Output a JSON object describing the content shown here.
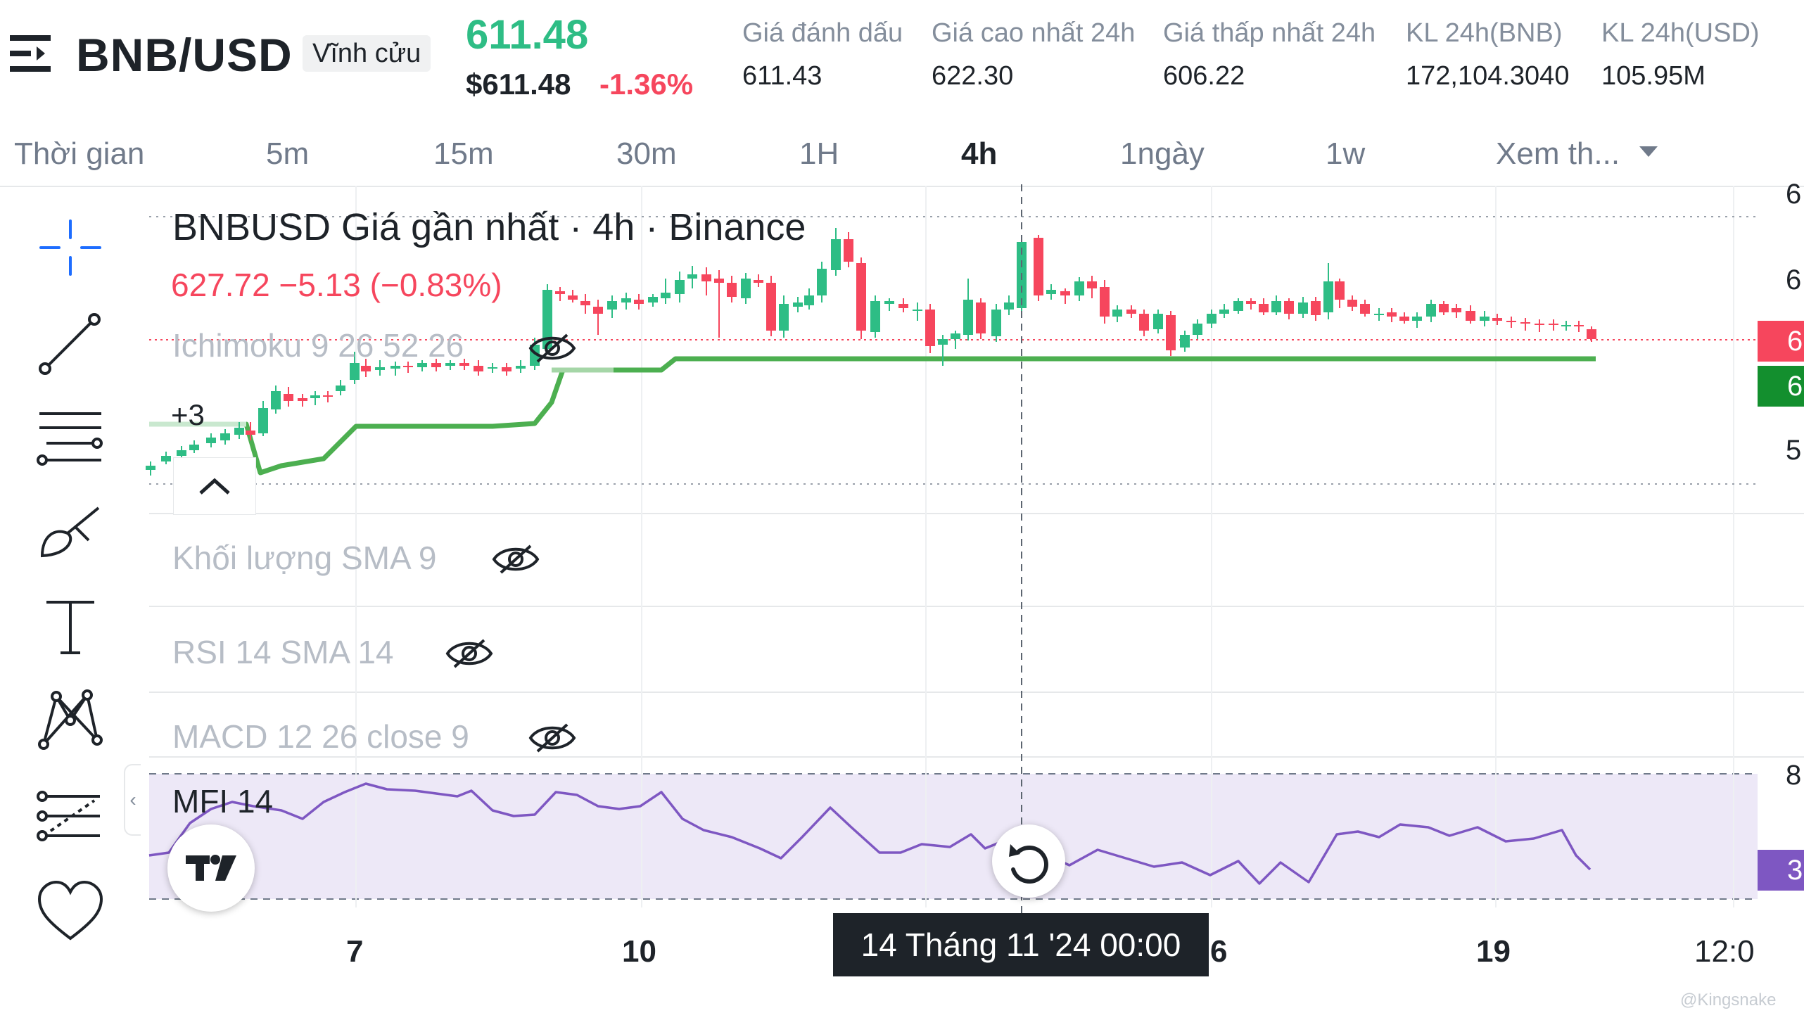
{
  "header": {
    "pair": "BNB/USD",
    "contract_type": "Vĩnh cửu",
    "last_price": "611.48",
    "usd_price": "$611.48",
    "change_pct": "-1.36%",
    "stats": [
      {
        "label": "Giá đánh dấu",
        "value": "611.43"
      },
      {
        "label": "Giá cao nhất 24h",
        "value": "622.30"
      },
      {
        "label": "Giá thấp nhất 24h",
        "value": "606.22"
      },
      {
        "label": "KL 24h(BNB)",
        "value": "172,104.3040"
      },
      {
        "label": "KL 24h(USD)",
        "value": "105.95M"
      }
    ]
  },
  "timeframes": {
    "label": "Thời gian",
    "items": [
      "5m",
      "15m",
      "30m",
      "1H",
      "4h",
      "1ngày",
      "1w"
    ],
    "active": "4h",
    "more": "Xem th..."
  },
  "toolbar": [
    "crosshair-icon",
    "trendline-icon",
    "fib-lines-icon",
    "brush-icon",
    "text-icon",
    "pattern-icon",
    "forecast-icon",
    "favorite-icon"
  ],
  "chart": {
    "legend_title": "BNBUSD Giá gần nhất · 4h · Binance",
    "legend_values": "627.72  −5.13 (−0.83%)",
    "ichimoku_label": "Ichimoku 9 26 52 26",
    "hidden_count": "+3",
    "volume_label": "Khối lượng SMA 9",
    "rsi_label": "RSI 14 SMA 14",
    "macd_label": "MACD 12 26 close 9",
    "mfi_label": "MFI 14",
    "price_axis_partial": [
      "6",
      "6",
      "5"
    ],
    "price_tags": [
      {
        "text": "6",
        "color": "#f6465d"
      },
      {
        "text": "6",
        "color": "#138f2e"
      }
    ],
    "mfi_axis_partial": "8",
    "mfi_tag": "3",
    "x_labels": [
      "7",
      "10",
      "6",
      "19",
      "12:0"
    ],
    "crosshair_time": "14 Tháng 11 '24   00:00",
    "colors": {
      "up": "#2ebd85",
      "down": "#f6465d",
      "kijun": "#4caf50",
      "mfi": "#7e57c2"
    }
  },
  "watermark": "@Kingsnake"
}
